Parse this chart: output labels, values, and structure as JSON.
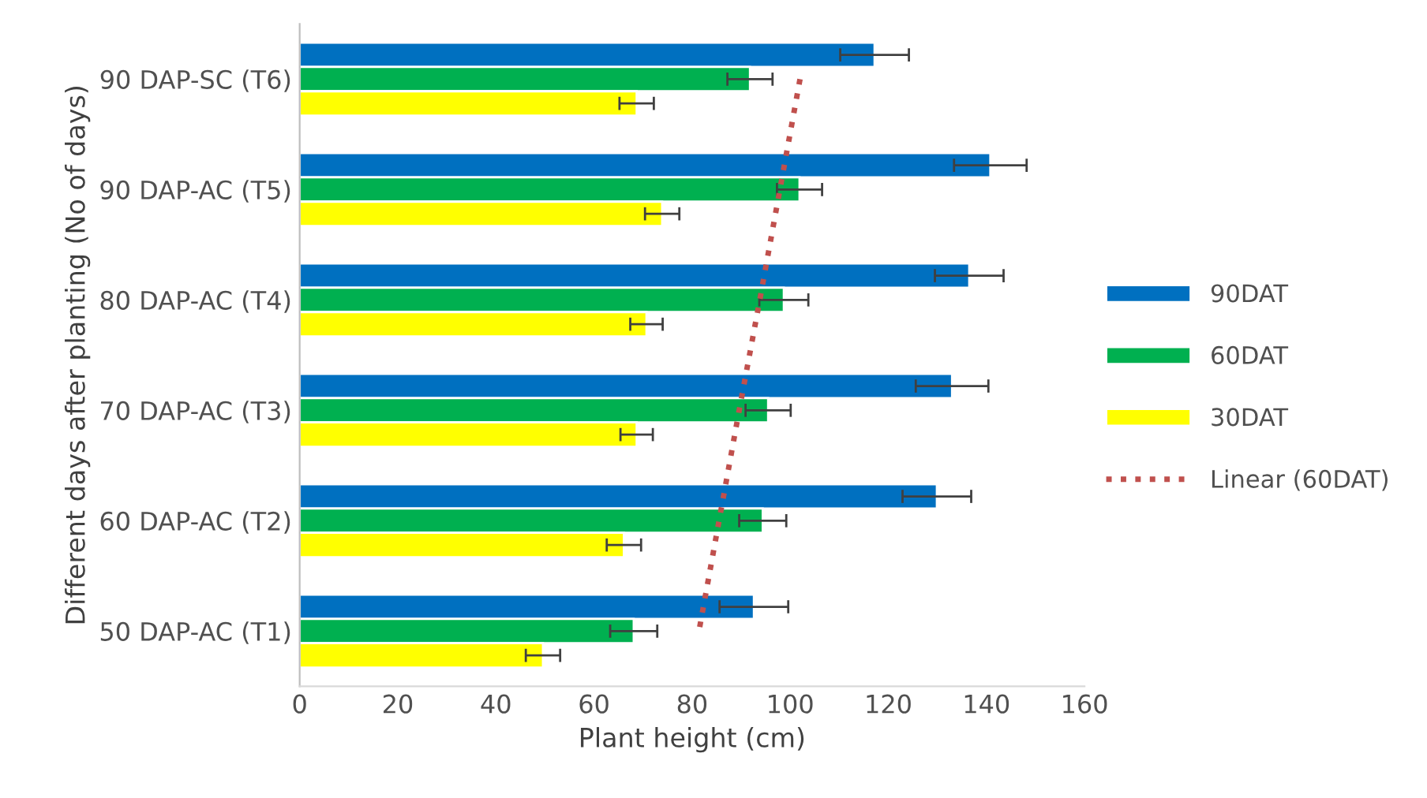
{
  "chart_data": {
    "type": "bar",
    "orientation": "horizontal",
    "xlabel": "Plant height (cm)",
    "ylabel": "Different days after planting (No of days)",
    "categories": [
      "90 DAP-SC (T6)",
      "90 DAP-AC (T5)",
      "80 DAP-AC (T4)",
      "70 DAP-AC (T3)",
      "60 DAP-AC (T2)",
      "50 DAP-AC (T1)"
    ],
    "series": [
      {
        "name": "90DAT",
        "color": "#0070c0",
        "values": [
          117.2,
          140.8,
          136.5,
          133.0,
          129.9,
          92.6
        ],
        "errors": [
          7,
          7.4,
          7,
          7.4,
          7,
          7
        ]
      },
      {
        "name": "60DAT",
        "color": "#00b050",
        "values": [
          91.8,
          101.9,
          98.7,
          95.5,
          94.4,
          68.1
        ],
        "errors": [
          4.6,
          4.6,
          5,
          4.6,
          4.8,
          4.8
        ]
      },
      {
        "name": "30DAT",
        "color": "#ffff00",
        "values": [
          68.7,
          73.9,
          70.7,
          68.7,
          66.1,
          49.6
        ],
        "errors": [
          3.5,
          3.5,
          3.3,
          3.3,
          3.5,
          3.5
        ]
      },
      {
        "name": "Linear (60DAT)",
        "type": "line",
        "line_style": "dotted",
        "color": "#c0504d",
        "values": [
          102.0,
          97.9,
          93.8,
          89.6,
          85.5,
          81.4
        ]
      }
    ],
    "xlim": [
      0,
      160
    ],
    "xticks": [
      0,
      20,
      40,
      60,
      80,
      100,
      120,
      140,
      160
    ],
    "grid": false,
    "legend": "right"
  }
}
